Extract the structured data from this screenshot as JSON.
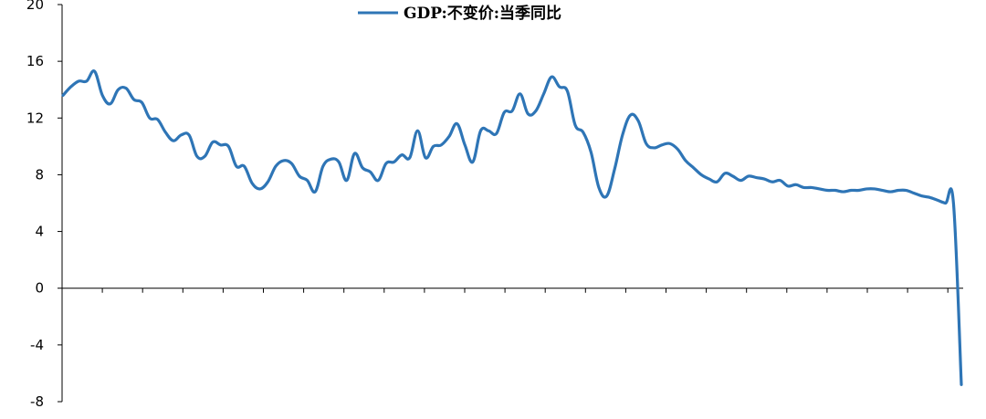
{
  "chart_data": {
    "type": "line",
    "title": "",
    "xlabel": "",
    "ylabel": "",
    "ylim": [
      -8,
      20
    ],
    "yticks": [
      "20",
      "16",
      "12",
      "8",
      "4",
      "0",
      "-4",
      "-8"
    ],
    "grid": false,
    "legend": {
      "placement": "top-center"
    },
    "series": [
      {
        "name": "GDP:不变价:当季同比",
        "color": "#2e75b6",
        "values": [
          13.6,
          14.2,
          14.6,
          14.6,
          15.3,
          13.6,
          13.0,
          14.0,
          14.1,
          13.3,
          13.1,
          12.0,
          11.9,
          11.0,
          10.4,
          10.8,
          10.8,
          9.3,
          9.3,
          10.3,
          10.1,
          10.0,
          8.6,
          8.6,
          7.4,
          7.0,
          7.5,
          8.6,
          9.0,
          8.8,
          7.9,
          7.6,
          6.8,
          8.6,
          9.1,
          8.9,
          7.6,
          9.5,
          8.5,
          8.2,
          7.6,
          8.8,
          8.9,
          9.4,
          9.2,
          11.1,
          9.2,
          10.0,
          10.1,
          10.7,
          11.6,
          10.1,
          8.9,
          11.1,
          11.1,
          10.9,
          12.4,
          12.5,
          13.7,
          12.3,
          12.5,
          13.7,
          14.9,
          14.2,
          13.9,
          11.5,
          11.0,
          9.6,
          7.1,
          6.5,
          8.4,
          10.8,
          12.2,
          11.8,
          10.2,
          9.9,
          10.1,
          10.2,
          9.8,
          9.0,
          8.5,
          8.0,
          7.7,
          7.5,
          8.1,
          7.9,
          7.6,
          7.9,
          7.8,
          7.7,
          7.5,
          7.6,
          7.2,
          7.3,
          7.1,
          7.1,
          7.0,
          6.9,
          6.9,
          6.8,
          6.9,
          6.9,
          7.0,
          7.0,
          6.9,
          6.8,
          6.9,
          6.9,
          6.7,
          6.5,
          6.4,
          6.2,
          6.0,
          6.0,
          -6.8
        ]
      }
    ]
  }
}
